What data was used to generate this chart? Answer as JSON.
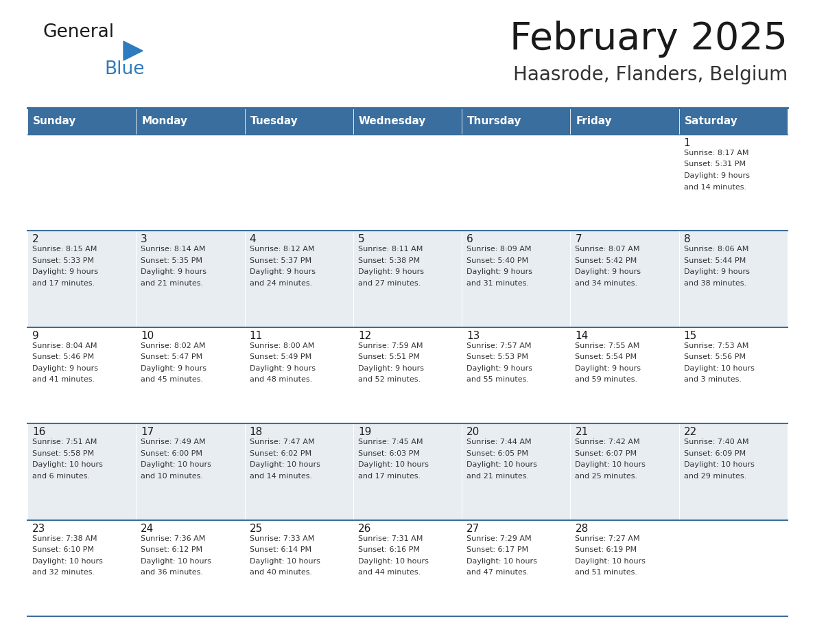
{
  "title": "February 2025",
  "subtitle": "Haasrode, Flanders, Belgium",
  "header_bg": "#3a6e9e",
  "header_text_color": "#ffffff",
  "cell_bg_white": "#ffffff",
  "cell_bg_gray": "#e8edf2",
  "border_color": "#3a6e9e",
  "day_headers": [
    "Sunday",
    "Monday",
    "Tuesday",
    "Wednesday",
    "Thursday",
    "Friday",
    "Saturday"
  ],
  "title_color": "#1a1a1a",
  "subtitle_color": "#333333",
  "day_num_color": "#1a1a1a",
  "info_color": "#333333",
  "calendar": [
    [
      null,
      null,
      null,
      null,
      null,
      null,
      {
        "day": 1,
        "sunrise": "8:17 AM",
        "sunset": "5:31 PM",
        "daylight": "9 hours",
        "daylight2": "and 14 minutes."
      }
    ],
    [
      {
        "day": 2,
        "sunrise": "8:15 AM",
        "sunset": "5:33 PM",
        "daylight": "9 hours",
        "daylight2": "and 17 minutes."
      },
      {
        "day": 3,
        "sunrise": "8:14 AM",
        "sunset": "5:35 PM",
        "daylight": "9 hours",
        "daylight2": "and 21 minutes."
      },
      {
        "day": 4,
        "sunrise": "8:12 AM",
        "sunset": "5:37 PM",
        "daylight": "9 hours",
        "daylight2": "and 24 minutes."
      },
      {
        "day": 5,
        "sunrise": "8:11 AM",
        "sunset": "5:38 PM",
        "daylight": "9 hours",
        "daylight2": "and 27 minutes."
      },
      {
        "day": 6,
        "sunrise": "8:09 AM",
        "sunset": "5:40 PM",
        "daylight": "9 hours",
        "daylight2": "and 31 minutes."
      },
      {
        "day": 7,
        "sunrise": "8:07 AM",
        "sunset": "5:42 PM",
        "daylight": "9 hours",
        "daylight2": "and 34 minutes."
      },
      {
        "day": 8,
        "sunrise": "8:06 AM",
        "sunset": "5:44 PM",
        "daylight": "9 hours",
        "daylight2": "and 38 minutes."
      }
    ],
    [
      {
        "day": 9,
        "sunrise": "8:04 AM",
        "sunset": "5:46 PM",
        "daylight": "9 hours",
        "daylight2": "and 41 minutes."
      },
      {
        "day": 10,
        "sunrise": "8:02 AM",
        "sunset": "5:47 PM",
        "daylight": "9 hours",
        "daylight2": "and 45 minutes."
      },
      {
        "day": 11,
        "sunrise": "8:00 AM",
        "sunset": "5:49 PM",
        "daylight": "9 hours",
        "daylight2": "and 48 minutes."
      },
      {
        "day": 12,
        "sunrise": "7:59 AM",
        "sunset": "5:51 PM",
        "daylight": "9 hours",
        "daylight2": "and 52 minutes."
      },
      {
        "day": 13,
        "sunrise": "7:57 AM",
        "sunset": "5:53 PM",
        "daylight": "9 hours",
        "daylight2": "and 55 minutes."
      },
      {
        "day": 14,
        "sunrise": "7:55 AM",
        "sunset": "5:54 PM",
        "daylight": "9 hours",
        "daylight2": "and 59 minutes."
      },
      {
        "day": 15,
        "sunrise": "7:53 AM",
        "sunset": "5:56 PM",
        "daylight": "10 hours",
        "daylight2": "and 3 minutes."
      }
    ],
    [
      {
        "day": 16,
        "sunrise": "7:51 AM",
        "sunset": "5:58 PM",
        "daylight": "10 hours",
        "daylight2": "and 6 minutes."
      },
      {
        "day": 17,
        "sunrise": "7:49 AM",
        "sunset": "6:00 PM",
        "daylight": "10 hours",
        "daylight2": "and 10 minutes."
      },
      {
        "day": 18,
        "sunrise": "7:47 AM",
        "sunset": "6:02 PM",
        "daylight": "10 hours",
        "daylight2": "and 14 minutes."
      },
      {
        "day": 19,
        "sunrise": "7:45 AM",
        "sunset": "6:03 PM",
        "daylight": "10 hours",
        "daylight2": "and 17 minutes."
      },
      {
        "day": 20,
        "sunrise": "7:44 AM",
        "sunset": "6:05 PM",
        "daylight": "10 hours",
        "daylight2": "and 21 minutes."
      },
      {
        "day": 21,
        "sunrise": "7:42 AM",
        "sunset": "6:07 PM",
        "daylight": "10 hours",
        "daylight2": "and 25 minutes."
      },
      {
        "day": 22,
        "sunrise": "7:40 AM",
        "sunset": "6:09 PM",
        "daylight": "10 hours",
        "daylight2": "and 29 minutes."
      }
    ],
    [
      {
        "day": 23,
        "sunrise": "7:38 AM",
        "sunset": "6:10 PM",
        "daylight": "10 hours",
        "daylight2": "and 32 minutes."
      },
      {
        "day": 24,
        "sunrise": "7:36 AM",
        "sunset": "6:12 PM",
        "daylight": "10 hours",
        "daylight2": "and 36 minutes."
      },
      {
        "day": 25,
        "sunrise": "7:33 AM",
        "sunset": "6:14 PM",
        "daylight": "10 hours",
        "daylight2": "and 40 minutes."
      },
      {
        "day": 26,
        "sunrise": "7:31 AM",
        "sunset": "6:16 PM",
        "daylight": "10 hours",
        "daylight2": "and 44 minutes."
      },
      {
        "day": 27,
        "sunrise": "7:29 AM",
        "sunset": "6:17 PM",
        "daylight": "10 hours",
        "daylight2": "and 47 minutes."
      },
      {
        "day": 28,
        "sunrise": "7:27 AM",
        "sunset": "6:19 PM",
        "daylight": "10 hours",
        "daylight2": "and 51 minutes."
      },
      null
    ]
  ],
  "logo_general_color": "#1a1a1a",
  "logo_blue_color": "#2e7bbf",
  "row_backgrounds": [
    "#ffffff",
    "#e8edf2",
    "#ffffff",
    "#e8edf2",
    "#ffffff"
  ]
}
